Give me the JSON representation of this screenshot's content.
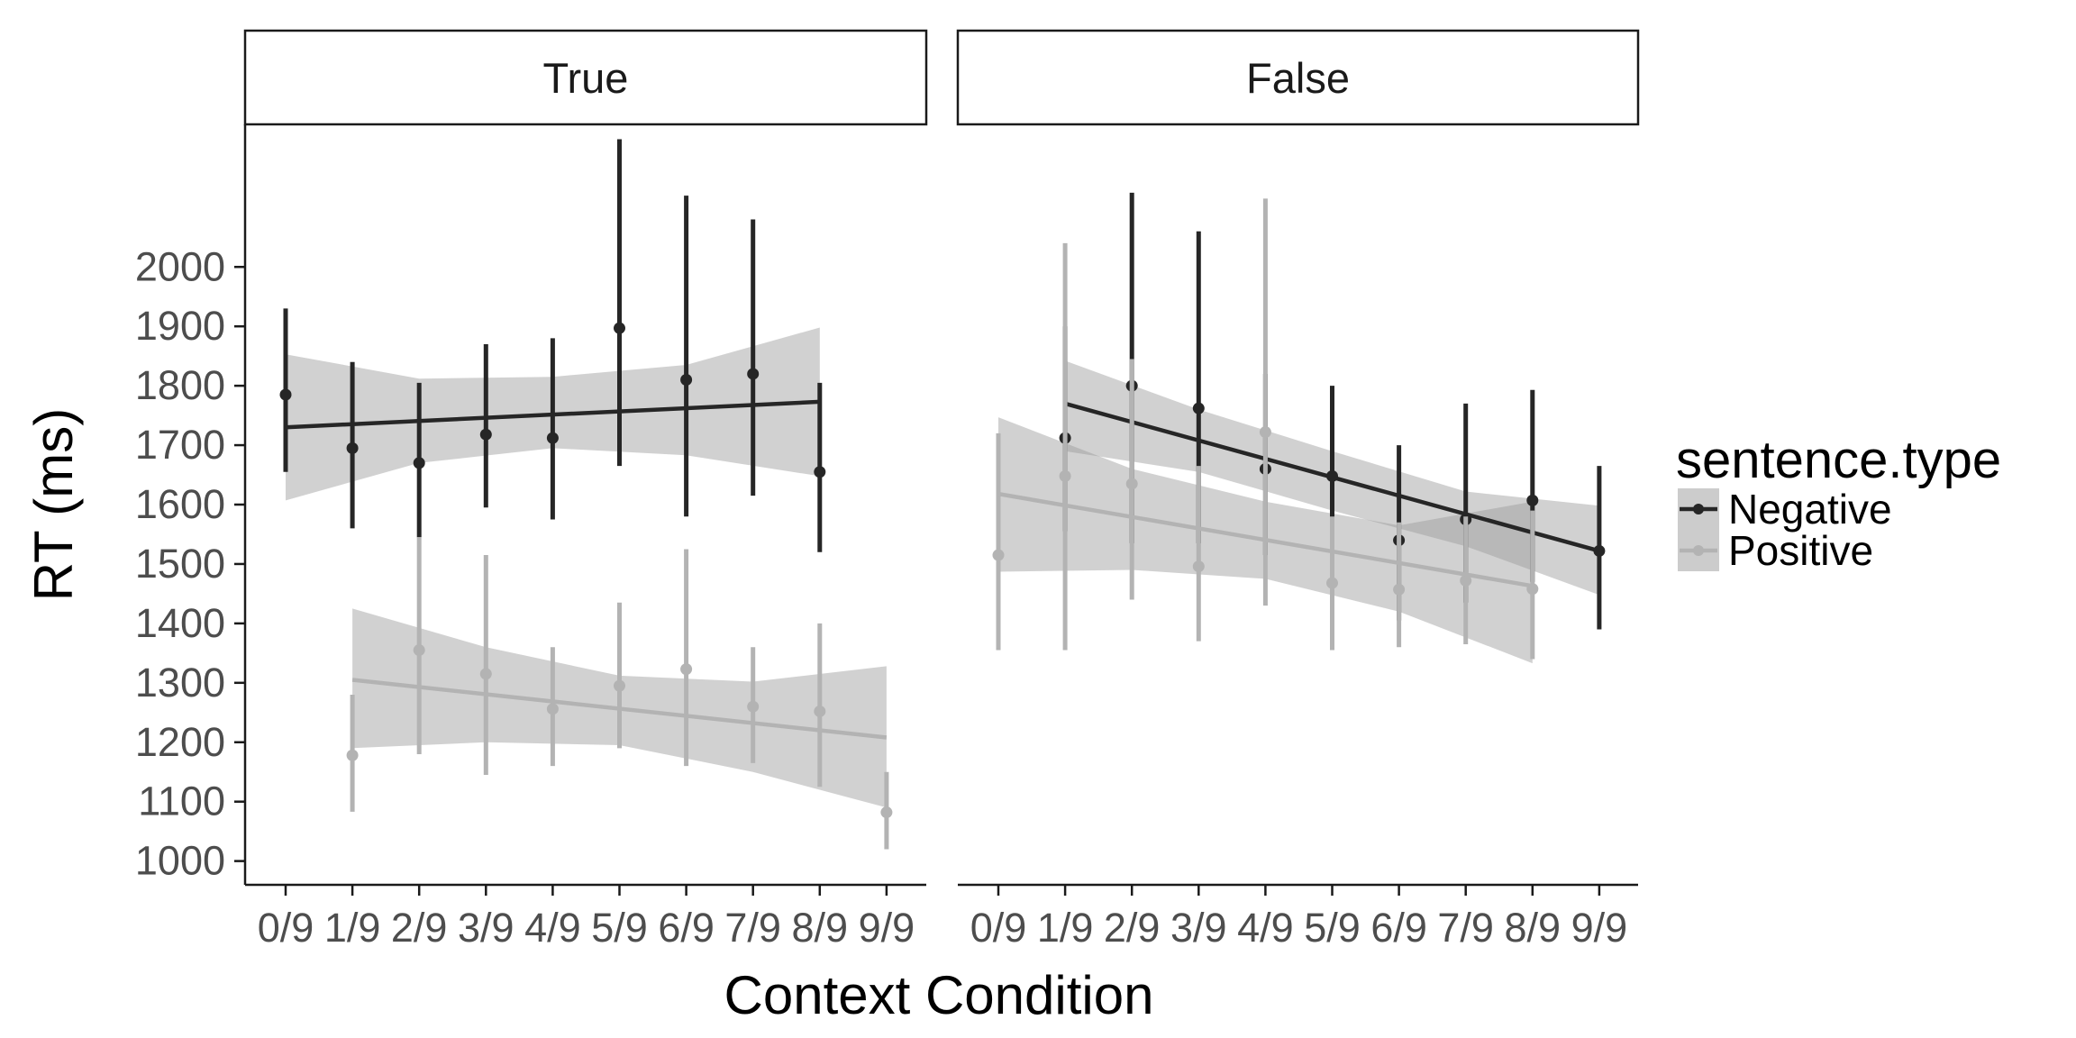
{
  "chart_data": {
    "type": "scatter",
    "xlabel": "Context Condition",
    "ylabel": "RT (ms)",
    "categories": [
      "0/9",
      "1/9",
      "2/9",
      "3/9",
      "4/9",
      "5/9",
      "6/9",
      "7/9",
      "8/9",
      "9/9"
    ],
    "y_ticks": [
      1000,
      1100,
      1200,
      1300,
      1400,
      1500,
      1600,
      1700,
      1800,
      1900,
      2000
    ],
    "ylim": [
      960,
      2240
    ],
    "grid": false,
    "legend": {
      "title": "sentence.type",
      "position": "right",
      "entries": [
        {
          "label": "Negative",
          "color": "#262626"
        },
        {
          "label": "Positive",
          "color": "#b3b3b3"
        }
      ]
    },
    "panels": [
      {
        "strip": "True",
        "series": [
          {
            "name": "Negative",
            "color": "#262626",
            "points": [
              {
                "x": "0/9",
                "y": 1785,
                "lo": 1655,
                "hi": 1930
              },
              {
                "x": "1/9",
                "y": 1695,
                "lo": 1560,
                "hi": 1840
              },
              {
                "x": "2/9",
                "y": 1670,
                "lo": 1545,
                "hi": 1805
              },
              {
                "x": "3/9",
                "y": 1718,
                "lo": 1595,
                "hi": 1870
              },
              {
                "x": "4/9",
                "y": 1712,
                "lo": 1575,
                "hi": 1880
              },
              {
                "x": "5/9",
                "y": 1897,
                "lo": 1665,
                "hi": 2215
              },
              {
                "x": "6/9",
                "y": 1810,
                "lo": 1580,
                "hi": 2120
              },
              {
                "x": "7/9",
                "y": 1820,
                "lo": 1615,
                "hi": 2080
              },
              {
                "x": "8/9",
                "y": 1655,
                "lo": 1520,
                "hi": 1805
              }
            ],
            "fit": {
              "from": "0/9",
              "to": "8/9",
              "y": [
                1730,
                1773
              ],
              "band_x": [
                0,
                2,
                4,
                6,
                8
              ],
              "band_lo": [
                1607,
                1670,
                1695,
                1683,
                1648
              ],
              "band_hi": [
                1853,
                1812,
                1815,
                1835,
                1898
              ]
            }
          },
          {
            "name": "Positive",
            "color": "#b3b3b3",
            "points": [
              {
                "x": "1/9",
                "y": 1178,
                "lo": 1083,
                "hi": 1280
              },
              {
                "x": "2/9",
                "y": 1355,
                "lo": 1180,
                "hi": 1545
              },
              {
                "x": "3/9",
                "y": 1315,
                "lo": 1145,
                "hi": 1515
              },
              {
                "x": "4/9",
                "y": 1256,
                "lo": 1160,
                "hi": 1360
              },
              {
                "x": "5/9",
                "y": 1295,
                "lo": 1190,
                "hi": 1435
              },
              {
                "x": "6/9",
                "y": 1323,
                "lo": 1160,
                "hi": 1525
              },
              {
                "x": "7/9",
                "y": 1260,
                "lo": 1165,
                "hi": 1360
              },
              {
                "x": "8/9",
                "y": 1252,
                "lo": 1125,
                "hi": 1400
              },
              {
                "x": "9/9",
                "y": 1082,
                "lo": 1020,
                "hi": 1150
              }
            ],
            "fit": {
              "from": "1/9",
              "to": "9/9",
              "y": [
                1305,
                1208
              ],
              "band_x": [
                1,
                3,
                5,
                7,
                9
              ],
              "band_lo": [
                1190,
                1200,
                1195,
                1150,
                1090
              ],
              "band_hi": [
                1425,
                1360,
                1312,
                1302,
                1328
              ]
            }
          }
        ]
      },
      {
        "strip": "False",
        "series": [
          {
            "name": "Negative",
            "color": "#262626",
            "points": [
              {
                "x": "1/9",
                "y": 1712,
                "lo": 1555,
                "hi": 1900
              },
              {
                "x": "2/9",
                "y": 1800,
                "lo": 1535,
                "hi": 2125
              },
              {
                "x": "3/9",
                "y": 1762,
                "lo": 1535,
                "hi": 2060
              },
              {
                "x": "4/9",
                "y": 1660,
                "lo": 1515,
                "hi": 1820
              },
              {
                "x": "5/9",
                "y": 1648,
                "lo": 1505,
                "hi": 1800
              },
              {
                "x": "6/9",
                "y": 1540,
                "lo": 1405,
                "hi": 1700
              },
              {
                "x": "7/9",
                "y": 1575,
                "lo": 1435,
                "hi": 1770
              },
              {
                "x": "8/9",
                "y": 1607,
                "lo": 1470,
                "hi": 1793
              },
              {
                "x": "9/9",
                "y": 1522,
                "lo": 1390,
                "hi": 1665
              }
            ],
            "fit": {
              "from": "1/9",
              "to": "9/9",
              "y": [
                1770,
                1522
              ],
              "band_x": [
                1,
                3,
                5,
                7,
                9
              ],
              "band_lo": [
                1690,
                1655,
                1590,
                1530,
                1448
              ],
              "band_hi": [
                1842,
                1760,
                1690,
                1622,
                1598
              ]
            }
          },
          {
            "name": "Positive",
            "color": "#b3b3b3",
            "points": [
              {
                "x": "0/9",
                "y": 1515,
                "lo": 1355,
                "hi": 1720
              },
              {
                "x": "1/9",
                "y": 1648,
                "lo": 1355,
                "hi": 2040
              },
              {
                "x": "2/9",
                "y": 1635,
                "lo": 1440,
                "hi": 1845
              },
              {
                "x": "3/9",
                "y": 1496,
                "lo": 1370,
                "hi": 1665
              },
              {
                "x": "4/9",
                "y": 1722,
                "lo": 1430,
                "hi": 2115
              },
              {
                "x": "5/9",
                "y": 1468,
                "lo": 1355,
                "hi": 1580
              },
              {
                "x": "6/9",
                "y": 1457,
                "lo": 1360,
                "hi": 1570
              },
              {
                "x": "7/9",
                "y": 1472,
                "lo": 1365,
                "hi": 1580
              },
              {
                "x": "8/9",
                "y": 1458,
                "lo": 1340,
                "hi": 1590
              }
            ],
            "fit": {
              "from": "0/9",
              "to": "8/9",
              "y": [
                1618,
                1463
              ],
              "band_x": [
                0,
                2,
                4,
                6,
                8
              ],
              "band_lo": [
                1487,
                1490,
                1475,
                1420,
                1333
              ],
              "band_hi": [
                1747,
                1660,
                1605,
                1565,
                1605
              ]
            }
          }
        ]
      }
    ]
  }
}
